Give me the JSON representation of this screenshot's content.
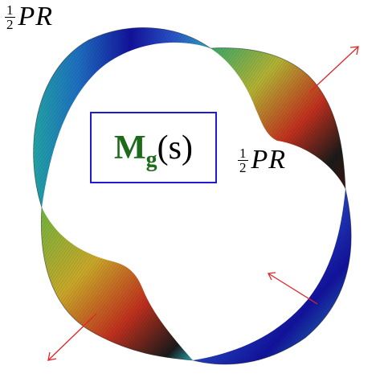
{
  "labels": {
    "frac_num": "1",
    "frac_den": "2",
    "pr": "PR",
    "mg_main": "M",
    "mg_sub": "g",
    "mg_arg": "(s)"
  },
  "colors": {
    "frame": "#1c1cd2",
    "mg_text": "#1d6b1a",
    "arrow": "#e0262a",
    "band_gradient": [
      "#1010a0",
      "#2b52c8",
      "#2aa6b6",
      "#8fb83a",
      "#c9b02c",
      "#c0301e",
      "#1a1a1a"
    ]
  },
  "icons": [
    "arrow-up-right-icon",
    "arrow-down-left-icon",
    "arrow-inward-icon"
  ]
}
